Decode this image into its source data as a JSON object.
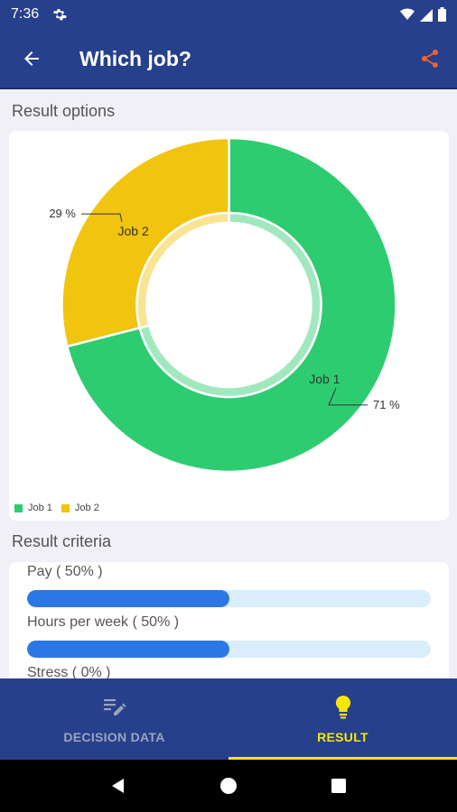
{
  "status_bar": {
    "time": "7:36"
  },
  "app_bar": {
    "title": "Which job?"
  },
  "result_options": {
    "heading": "Result options"
  },
  "chart_data": {
    "type": "pie",
    "categories": [
      "Job 1",
      "Job 2"
    ],
    "values": [
      71,
      29
    ],
    "value_labels": [
      "71 %",
      "29 %"
    ],
    "colors": [
      "#2ecc71",
      "#f1c40f"
    ],
    "legend": [
      "Job 1",
      "Job 2"
    ],
    "legend_position": "bottom-left"
  },
  "result_criteria": {
    "heading": "Result criteria",
    "items": [
      {
        "label": "Pay ( 50% )",
        "value": 0.5
      },
      {
        "label": "Hours per week ( 50% )",
        "value": 0.5
      },
      {
        "label": "Stress ( 0% )",
        "value": 0
      }
    ]
  },
  "bottom_nav": {
    "tabs": [
      {
        "label": "DECISION DATA",
        "icon": "edit-list-icon",
        "active": false
      },
      {
        "label": "RESULT",
        "icon": "lightbulb-icon",
        "active": true
      }
    ]
  },
  "colors": {
    "primary": "#27408b",
    "accent": "#f5e60a",
    "share": "#f0622d",
    "bar": "#2b78e4"
  }
}
